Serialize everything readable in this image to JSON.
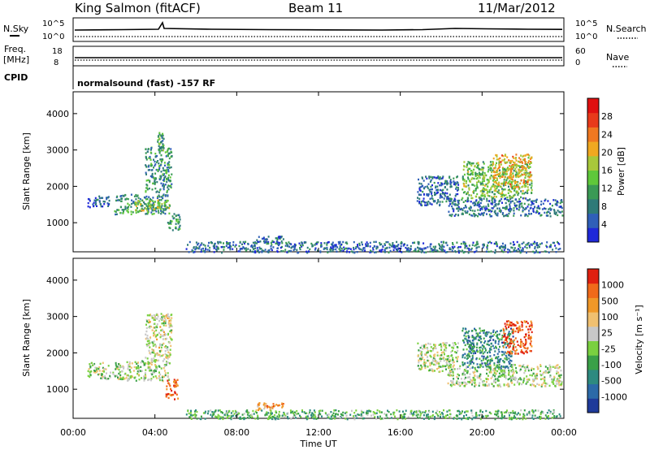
{
  "header": {
    "station": "King Salmon (fitACF)",
    "beam": "Beam 11",
    "date": "11/Mar/2012"
  },
  "strip": {
    "nsky_label": "N.Sky",
    "nsearch_label": "N.Search",
    "noise_ticks": [
      "10^5",
      "10^0"
    ],
    "freq_label": "Freq.",
    "freq_unit": "[MHz]",
    "freq_ticks": [
      "18",
      "8"
    ],
    "nave_ticks": [
      "60",
      "0"
    ],
    "nave_label": "Nave",
    "cpid_label": "CPID",
    "cpid_value": "normalsound (fast) -157 RF"
  },
  "x_axis": {
    "title": "Time UT",
    "ticks": [
      "00:00",
      "04:00",
      "08:00",
      "12:00",
      "16:00",
      "20:00",
      "00:00"
    ]
  },
  "colors": {
    "power": [
      "#1f28d8",
      "#2f5fb8",
      "#2e7a78",
      "#3a9a55",
      "#5fc83a",
      "#a8c83a",
      "#f0a820",
      "#f07820",
      "#e83a1a",
      "#e01010"
    ],
    "velocity": [
      "#1f3a9a",
      "#2c6aa8",
      "#2e8a80",
      "#3aa048",
      "#7ad040",
      "#c8c8c8",
      "#f0c070",
      "#f09828",
      "#f06a1a",
      "#e02010"
    ]
  },
  "chart_data": [
    {
      "type": "heatmap",
      "title": "",
      "xlabel": "",
      "ylabel": "Slant Range [km]",
      "xlim": [
        0,
        24
      ],
      "ylim": [
        200,
        4600
      ],
      "yticks": [
        "1000",
        "2000",
        "3000",
        "4000"
      ],
      "colorbar": {
        "label": "Power [dB]",
        "range": [
          0,
          32
        ],
        "ticks": [
          "4",
          "8",
          "12",
          "16",
          "20",
          "24",
          "28"
        ]
      },
      "blobs": [
        {
          "t": [
            0.7,
            1.8
          ],
          "r": [
            1450,
            1750
          ],
          "level": 0.15
        },
        {
          "t": [
            2.0,
            4.6
          ],
          "r": [
            1250,
            1800
          ],
          "level": 0.3
        },
        {
          "t": [
            3.0,
            4.7
          ],
          "r": [
            1350,
            1650
          ],
          "level": 0.5
        },
        {
          "t": [
            3.5,
            4.8
          ],
          "r": [
            1850,
            3100
          ],
          "level": 0.3
        },
        {
          "t": [
            4.1,
            4.4
          ],
          "r": [
            3000,
            3500
          ],
          "level": 0.35
        },
        {
          "t": [
            4.6,
            5.2
          ],
          "r": [
            800,
            1300
          ],
          "level": 0.3
        },
        {
          "t": [
            8.8,
            10.3
          ],
          "r": [
            450,
            650
          ],
          "level": 0.2
        },
        {
          "t": [
            5.5,
            23.8
          ],
          "r": [
            200,
            500
          ],
          "level": 0.2
        },
        {
          "t": [
            16.8,
            18.8
          ],
          "r": [
            1500,
            2300
          ],
          "level": 0.18
        },
        {
          "t": [
            18.3,
            23.9
          ],
          "r": [
            1200,
            1700
          ],
          "level": 0.2
        },
        {
          "t": [
            19.0,
            22.4
          ],
          "r": [
            1700,
            2700
          ],
          "level": 0.45
        },
        {
          "t": [
            20.5,
            22.4
          ],
          "r": [
            2000,
            2900
          ],
          "level": 0.65
        }
      ]
    },
    {
      "type": "heatmap",
      "title": "",
      "xlabel": "Time UT",
      "ylabel": "Slant Range [km]",
      "xlim": [
        0,
        24
      ],
      "ylim": [
        200,
        4600
      ],
      "yticks": [
        "1000",
        "2000",
        "3000",
        "4000"
      ],
      "colorbar": {
        "label": "Velocity [m s⁻¹]",
        "range": [
          -1200,
          1200
        ],
        "ticks": [
          "1000",
          "500",
          "100",
          "25",
          "-25",
          "-100",
          "-500",
          "-1000"
        ]
      },
      "blobs": [
        {
          "t": [
            0.7,
            2.6
          ],
          "r": [
            1300,
            1750
          ],
          "level": 0.5
        },
        {
          "t": [
            2.6,
            4.7
          ],
          "r": [
            1250,
            1800
          ],
          "level": 0.5
        },
        {
          "t": [
            3.5,
            4.8
          ],
          "r": [
            1800,
            3100
          ],
          "level": 0.55
        },
        {
          "t": [
            4.5,
            5.1
          ],
          "r": [
            750,
            1300
          ],
          "level": 0.85
        },
        {
          "t": [
            8.8,
            10.3
          ],
          "r": [
            450,
            650
          ],
          "level": 0.75
        },
        {
          "t": [
            5.5,
            23.8
          ],
          "r": [
            200,
            450
          ],
          "level": 0.38
        },
        {
          "t": [
            16.8,
            18.8
          ],
          "r": [
            1500,
            2300
          ],
          "level": 0.5
        },
        {
          "t": [
            18.3,
            23.9
          ],
          "r": [
            1100,
            1700
          ],
          "level": 0.5
        },
        {
          "t": [
            19.0,
            21.5
          ],
          "r": [
            1600,
            2700
          ],
          "level": 0.25
        },
        {
          "t": [
            21.0,
            22.4
          ],
          "r": [
            2000,
            2900
          ],
          "level": 0.9
        }
      ]
    }
  ]
}
